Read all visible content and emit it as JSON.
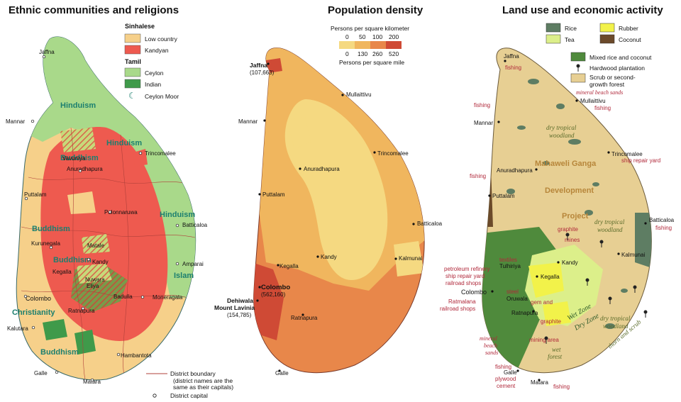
{
  "maps": {
    "ethnic": {
      "title": "Ethnic communities and religions",
      "legend": {
        "sinhalese_heading": "Sinhalese",
        "low_country": "Low country",
        "kandyan": "Kandyan",
        "tamil_heading": "Tamil",
        "ceylon": "Ceylon",
        "indian": "Indian",
        "ceylon_moor": "Ceylon Moor",
        "district_boundary": "District boundary",
        "district_note_1": "(district names are the",
        "district_note_2": "same as their capitals)",
        "district_capital": "District capital"
      },
      "religions": {
        "hinduism": "Hinduism",
        "buddhism": "Buddhism",
        "islam": "Islam",
        "christianity": "Christianity"
      },
      "places": {
        "jaffna": "Jaffna",
        "mannar": "Mannar",
        "vavuniya": "Vavuniya",
        "trincomalee": "Trincomalee",
        "anuradhapura": "Anuradhapura",
        "puttalam": "Puttalam",
        "polonnaruwa": "Polonnaruwa",
        "batticaloa": "Batticaloa",
        "kurunegala": "Kurunegala",
        "matale": "Matale",
        "kandy": "Kandy",
        "amparai": "Amparai",
        "kegalla": "Kegalla",
        "nuwara_eliya_1": "Nuwara",
        "nuwara_eliya_2": "Eliya",
        "badulla": "Badulla",
        "colombo": "Colombo",
        "moneragala": "Moneragala",
        "ratnapura": "Ratnapura",
        "kalutara": "Kalutara",
        "hambantota": "Hambantota",
        "galle": "Galle",
        "matara": "Matara"
      }
    },
    "density": {
      "title": "Population density",
      "legend": {
        "km_caption": "Persons per square kilometer",
        "km_ticks": [
          "0",
          "50",
          "100",
          "200"
        ],
        "mi_ticks": [
          "0",
          "130",
          "260",
          "520"
        ],
        "mi_caption": "Persons per square mile"
      },
      "places": {
        "jaffna": "Jaffna",
        "jaffna_pop": "(107,663)",
        "mullaittivu": "Mullaittivu",
        "mannar": "Mannar",
        "trincomalee": "Trincomalee",
        "anuradhapura": "Anuradhapura",
        "puttalam": "Puttalam",
        "batticaloa": "Batticaloa",
        "kalmunai": "Kalmunai",
        "kandy": "Kandy",
        "kegalla": "Kegalla",
        "colombo": "Colombo",
        "colombo_pop": "(562,160)",
        "dehiwala_1": "Dehiwala",
        "dehiwala_2": "Mount Lavinia",
        "dehiwala_pop": "(154,785)",
        "ratnapura": "Ratnapura",
        "galle": "Galle"
      }
    },
    "landuse": {
      "title": "Land use and economic activity",
      "legend": {
        "rice": "Rice",
        "rubber": "Rubber",
        "tea": "Tea",
        "coconut": "Coconut",
        "mixed": "Mixed rice and coconut",
        "hardwood": "Hardwood plantation",
        "scrub_1": "Scrub or second-",
        "scrub_2": "growth forest"
      },
      "places": {
        "jaffna": "Jaffna",
        "mullaittivu": "Mullaittivu",
        "mannar": "Mannar",
        "anuradhapura": "Anuradhapura",
        "trincomalee": "Trincomalee",
        "puttalam": "Puttalam",
        "batticaloa": "Batticaloa",
        "kalmunai": "Kalmunai",
        "kandy": "Kandy",
        "kegalla": "Kegalla",
        "tulhiriya": "Tulhiriya",
        "colombo": "Colombo",
        "oruwala": "Oruwala",
        "ratmalana": "Ratmalana",
        "ratnapura": "Ratnapura",
        "galle": "Galle",
        "matara": "Matara"
      },
      "annotations": {
        "fishing": "fishing",
        "mineral_beach_sands": "mineral beach sands",
        "dry_tropical_woodland": "dry tropical woodland",
        "thorn_and_scrub": "thorn and scrub",
        "mahaweli_ganga": "Mahaweli Ganga",
        "development": "Development",
        "project": "Project",
        "ship_repair_yard": "ship repair yard",
        "graphite": "graphite",
        "mines": "mines",
        "textiles": "textiles",
        "petroleum_refinery": "petroleum refinery",
        "ship_repair_yard2": "ship repair yard",
        "railroad_shops": "railroad shops",
        "steel": "steel",
        "gem_and": "gem and",
        "mining_area": "mining area",
        "wet_zone": "Wet Zone",
        "dry_zone": "Dry Zone",
        "wet_forest": "wet forest",
        "mineral_1": "mineral",
        "mineral_2": "beach",
        "mineral_3": "sands",
        "plywood": "plywood",
        "cement": "cement"
      }
    }
  },
  "colors": {
    "low_country": "#f6d08a",
    "kandyan": "#ee5a4f",
    "ceylon_tamil": "#a9d98a",
    "indian_tamil": "#3f9a4a",
    "density_1": "#f5d981",
    "density_2": "#f0b65e",
    "density_3": "#e8874a",
    "density_4": "#cf4a35",
    "rice": "#5e7d63",
    "tea": "#dcef8a",
    "rubber": "#f2f24a",
    "coconut": "#6b4a2a",
    "mixed": "#4f8a3c",
    "scrub": "#e7cf93",
    "religion_text": "#1b7f6f",
    "econ_text": "#b0283a"
  }
}
